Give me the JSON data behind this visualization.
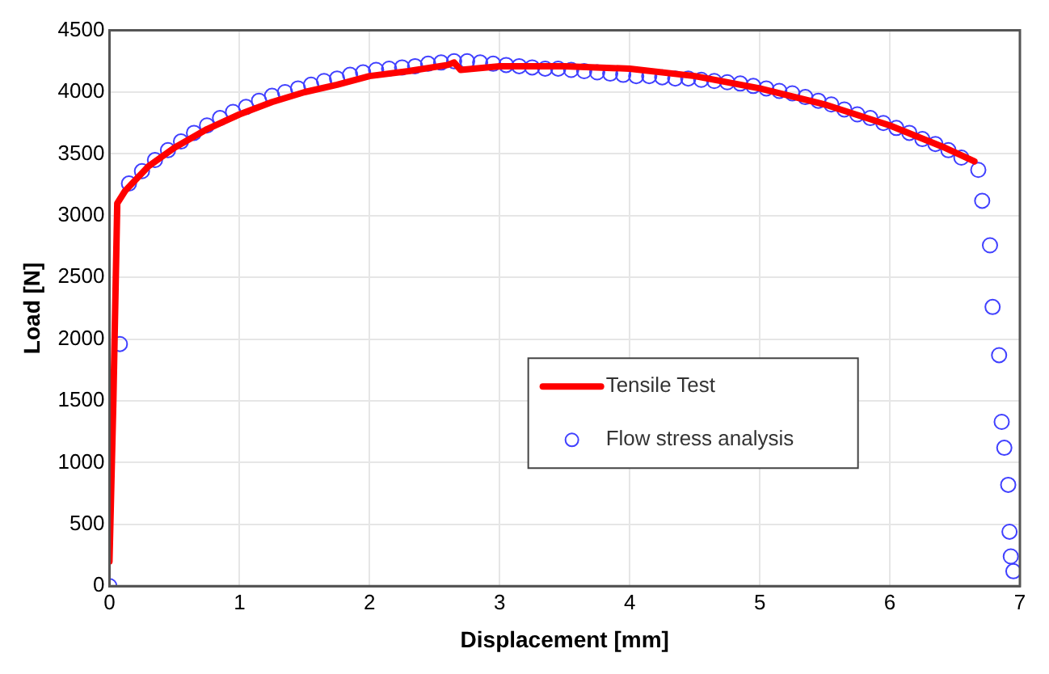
{
  "chart_data": {
    "type": "line",
    "xlabel": "Displacement [mm]",
    "ylabel": "Load [N]",
    "xlim": [
      0,
      7
    ],
    "xticks": [
      0,
      1,
      2,
      3,
      4,
      5,
      6,
      7
    ],
    "ylim": [
      0,
      4500
    ],
    "yticks": [
      0,
      500,
      1000,
      1500,
      2000,
      2500,
      3000,
      3500,
      4000,
      4500
    ],
    "grid": true,
    "legend": "bottom right",
    "series": [
      {
        "name": "Tensile Test",
        "color": "#ff0000",
        "marker": "none",
        "line_style": "solid",
        "x": [
          0,
          0.03,
          0.06,
          0.12,
          0.3,
          0.5,
          0.75,
          1,
          1.25,
          1.5,
          1.75,
          2,
          2.3,
          2.6,
          2.65,
          2.7,
          3,
          3.5,
          4,
          4.5,
          5,
          5.5,
          6,
          6.4,
          6.65
        ],
        "values": [
          200,
          1500,
          3100,
          3200,
          3400,
          3550,
          3700,
          3820,
          3920,
          4000,
          4060,
          4130,
          4170,
          4220,
          4240,
          4180,
          4210,
          4210,
          4190,
          4130,
          4030,
          3900,
          3730,
          3560,
          3440
        ]
      },
      {
        "name": "Flow stress analysis",
        "type": "scatter",
        "color": "#4040ff",
        "marker": "circle",
        "x": [
          0,
          0.08,
          0.15,
          0.25,
          0.35,
          0.45,
          0.55,
          0.65,
          0.75,
          0.85,
          0.95,
          1.05,
          1.15,
          1.25,
          1.35,
          1.45,
          1.55,
          1.65,
          1.75,
          1.85,
          1.95,
          2.05,
          2.15,
          2.25,
          2.35,
          2.45,
          2.55,
          2.65,
          2.75,
          2.85,
          2.95,
          3.05,
          3.15,
          3.25,
          3.35,
          3.45,
          3.55,
          3.65,
          3.75,
          3.85,
          3.95,
          4.05,
          4.15,
          4.25,
          4.35,
          4.45,
          4.55,
          4.65,
          4.75,
          4.85,
          4.95,
          5.05,
          5.15,
          5.25,
          5.35,
          5.45,
          5.55,
          5.65,
          5.75,
          5.85,
          5.95,
          6.05,
          6.15,
          6.25,
          6.35,
          6.45,
          6.55,
          6.68,
          6.71,
          6.77,
          6.79,
          6.84,
          6.86,
          6.88,
          6.91,
          6.92,
          6.93,
          6.95
        ],
        "values": [
          0,
          1960,
          3260,
          3360,
          3450,
          3530,
          3600,
          3670,
          3730,
          3790,
          3840,
          3880,
          3930,
          3970,
          4000,
          4030,
          4060,
          4090,
          4110,
          4140,
          4160,
          4180,
          4190,
          4200,
          4210,
          4230,
          4240,
          4250,
          4250,
          4240,
          4230,
          4220,
          4210,
          4200,
          4190,
          4190,
          4180,
          4170,
          4160,
          4150,
          4140,
          4130,
          4130,
          4120,
          4110,
          4110,
          4100,
          4090,
          4080,
          4070,
          4050,
          4030,
          4010,
          3990,
          3960,
          3930,
          3900,
          3860,
          3820,
          3790,
          3750,
          3710,
          3670,
          3620,
          3580,
          3530,
          3470,
          3370,
          3120,
          2760,
          2260,
          1870,
          1330,
          1120,
          820,
          440,
          240,
          120
        ]
      }
    ]
  }
}
